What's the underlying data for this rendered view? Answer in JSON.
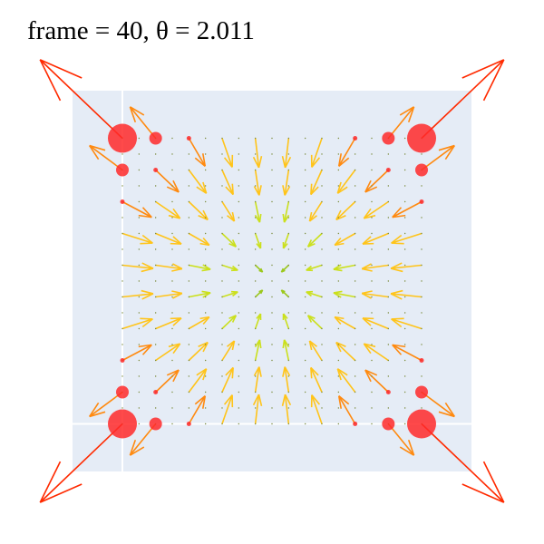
{
  "title": "frame = 40, θ = 2.011",
  "chart_data": {
    "type": "quiver",
    "title": "frame = 40, θ = 2.011",
    "xlabel": "",
    "ylabel": "",
    "xlim": [
      -1.2,
      1.2
    ],
    "ylim": [
      -1.2,
      1.2
    ],
    "grid": true,
    "ticks_shown": false,
    "legend": "none",
    "grid_points_x": [
      -0.9,
      -0.7,
      -0.5,
      -0.3,
      -0.1,
      0.1,
      0.3,
      0.5,
      0.7,
      0.9
    ],
    "grid_points_y": [
      -0.9,
      -0.7,
      -0.5,
      -0.3,
      -0.1,
      0.1,
      0.3,
      0.5,
      0.7,
      0.9
    ],
    "field_grid_step": 0.2,
    "field_grid_range": [
      -0.9,
      0.9
    ],
    "field_center": [
      0,
      0
    ],
    "field_description": "vectors converge toward the center in the interior; at the four corners large vectors point diagonally outward",
    "magnitude_colorscale": [
      "#5e9a13",
      "#9cc81e",
      "#cbe01c",
      "#ffc41a",
      "#ff8a10",
      "#ff2a00"
    ],
    "point_color": "#ff2a2a",
    "plot_bgcolor": "#e5ecf6",
    "zero_line_color": "#ffffff"
  }
}
